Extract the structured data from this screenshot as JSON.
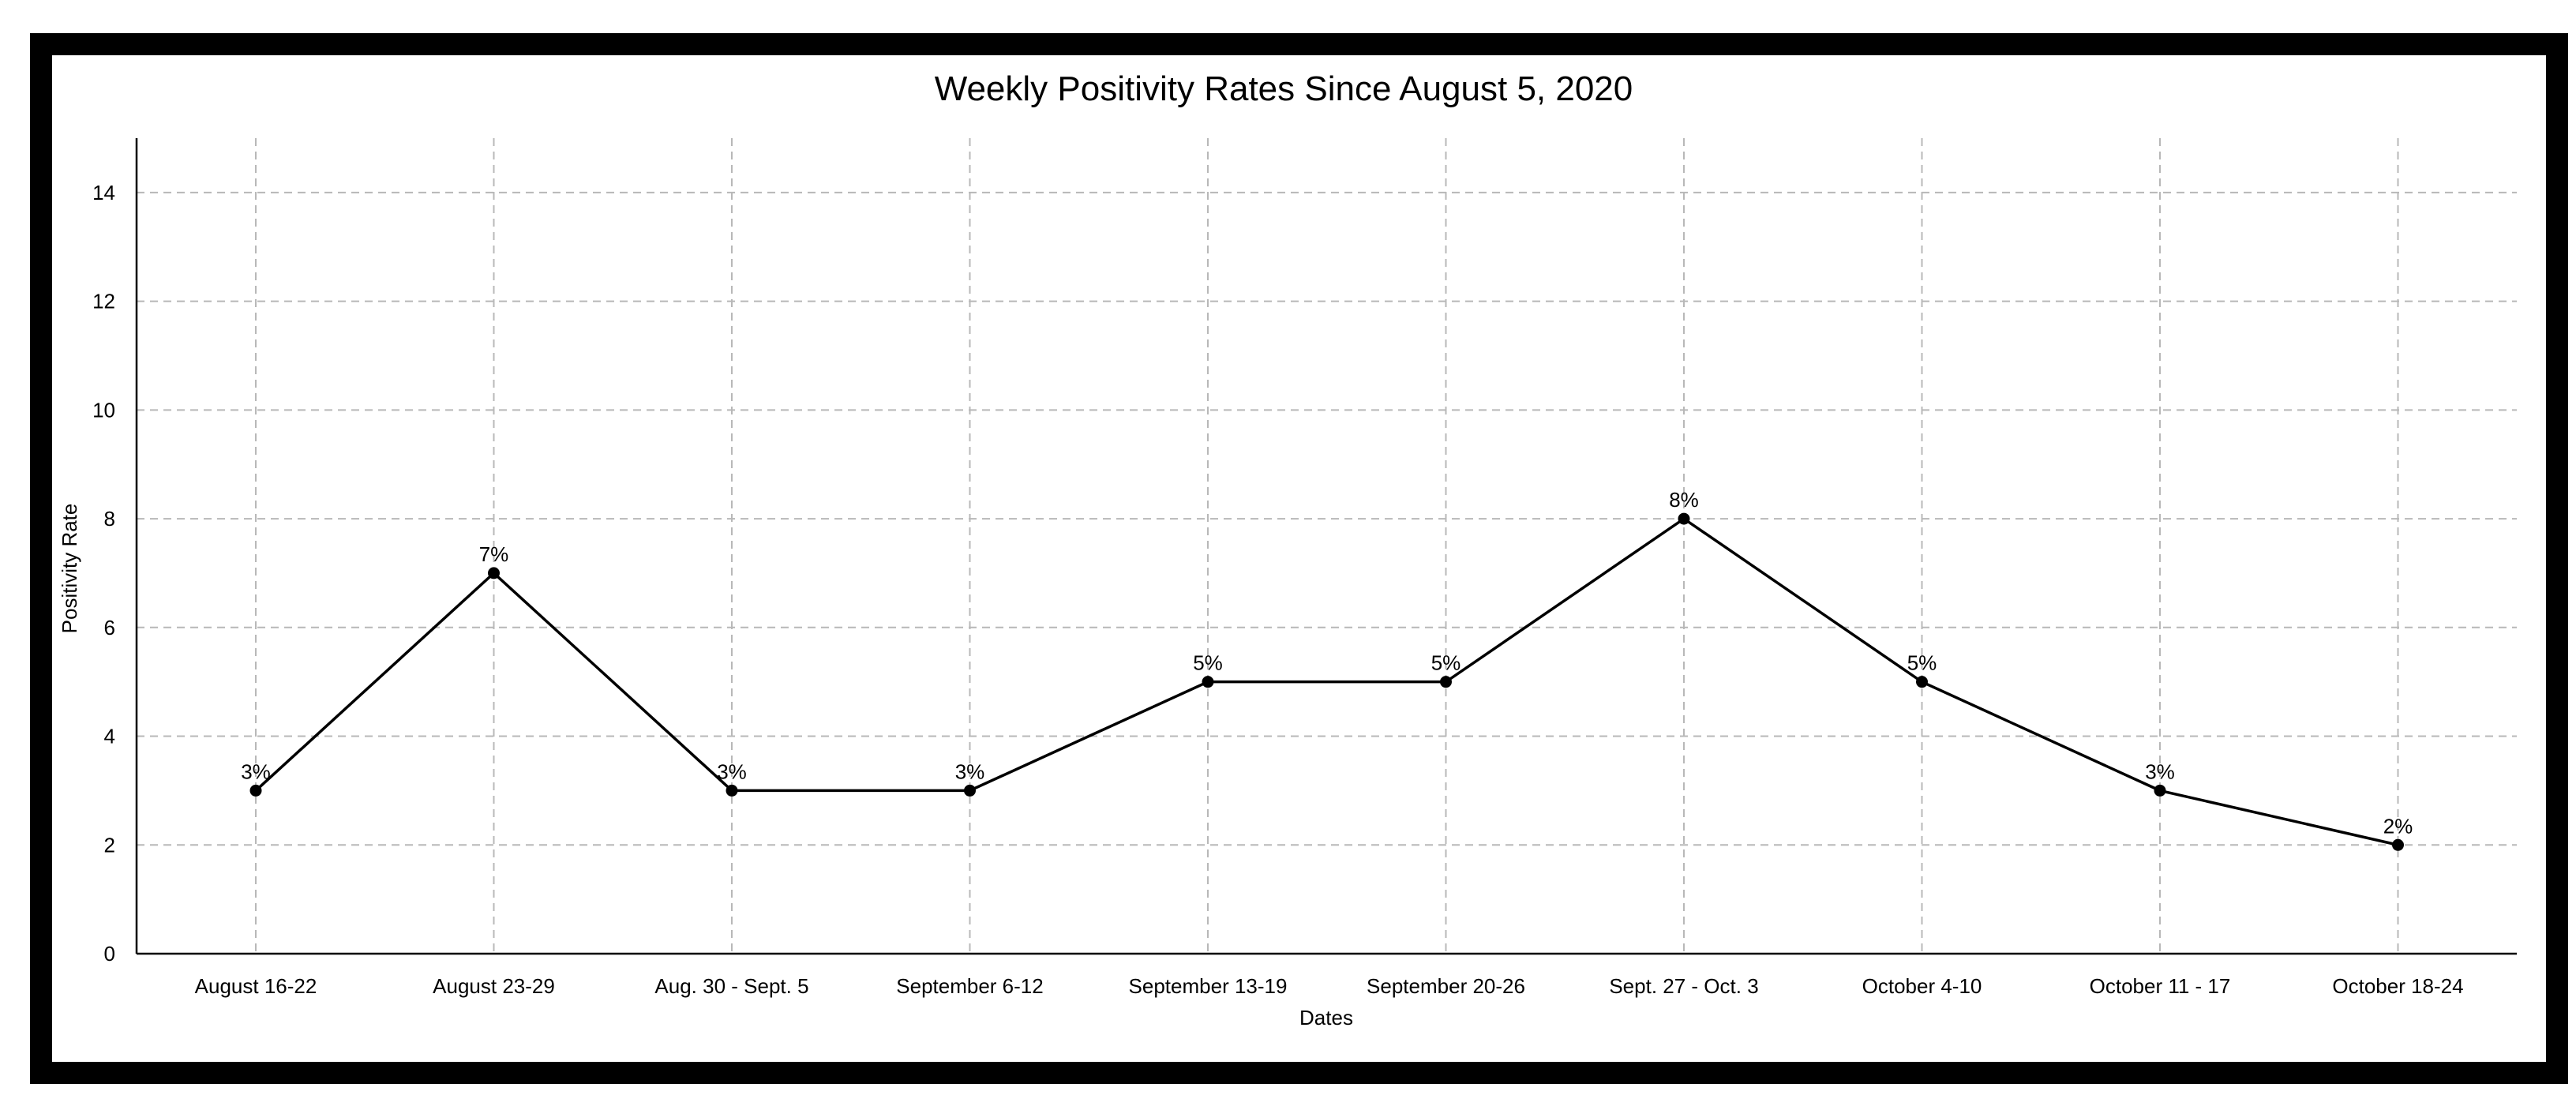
{
  "chart_data": {
    "type": "line",
    "title": "Weekly Positivity Rates Since August 5, 2020",
    "xlabel": "Dates",
    "ylabel": "Positivity Rate",
    "categories": [
      "August 16-22",
      "August 23-29",
      "Aug. 30 - Sept. 5",
      "September 6-12",
      "September 13-19",
      "September 20-26",
      "Sept. 27 - Oct. 3",
      "October 4-10",
      "October 11 - 17",
      "October 18-24"
    ],
    "series": [
      {
        "values": [
          3,
          7,
          3,
          3,
          5,
          5,
          8,
          5,
          3,
          2
        ],
        "data_labels": [
          "3%",
          "7%",
          "3%",
          "3%",
          "5%",
          "5%",
          "8%",
          "5%",
          "3%",
          "2%"
        ],
        "color": "#000000"
      }
    ],
    "ylim": [
      0,
      15
    ],
    "yticks": [
      0,
      2,
      4,
      6,
      8,
      10,
      12,
      14
    ],
    "ytick_labels": [
      "0",
      "2",
      "4",
      "6",
      "8",
      "10",
      "12",
      "14"
    ],
    "grid": true,
    "grid_style": "dashed",
    "legend": false,
    "colors": {
      "line": "#000000",
      "grid": "#b8b8b8",
      "frame": "#000000"
    }
  }
}
